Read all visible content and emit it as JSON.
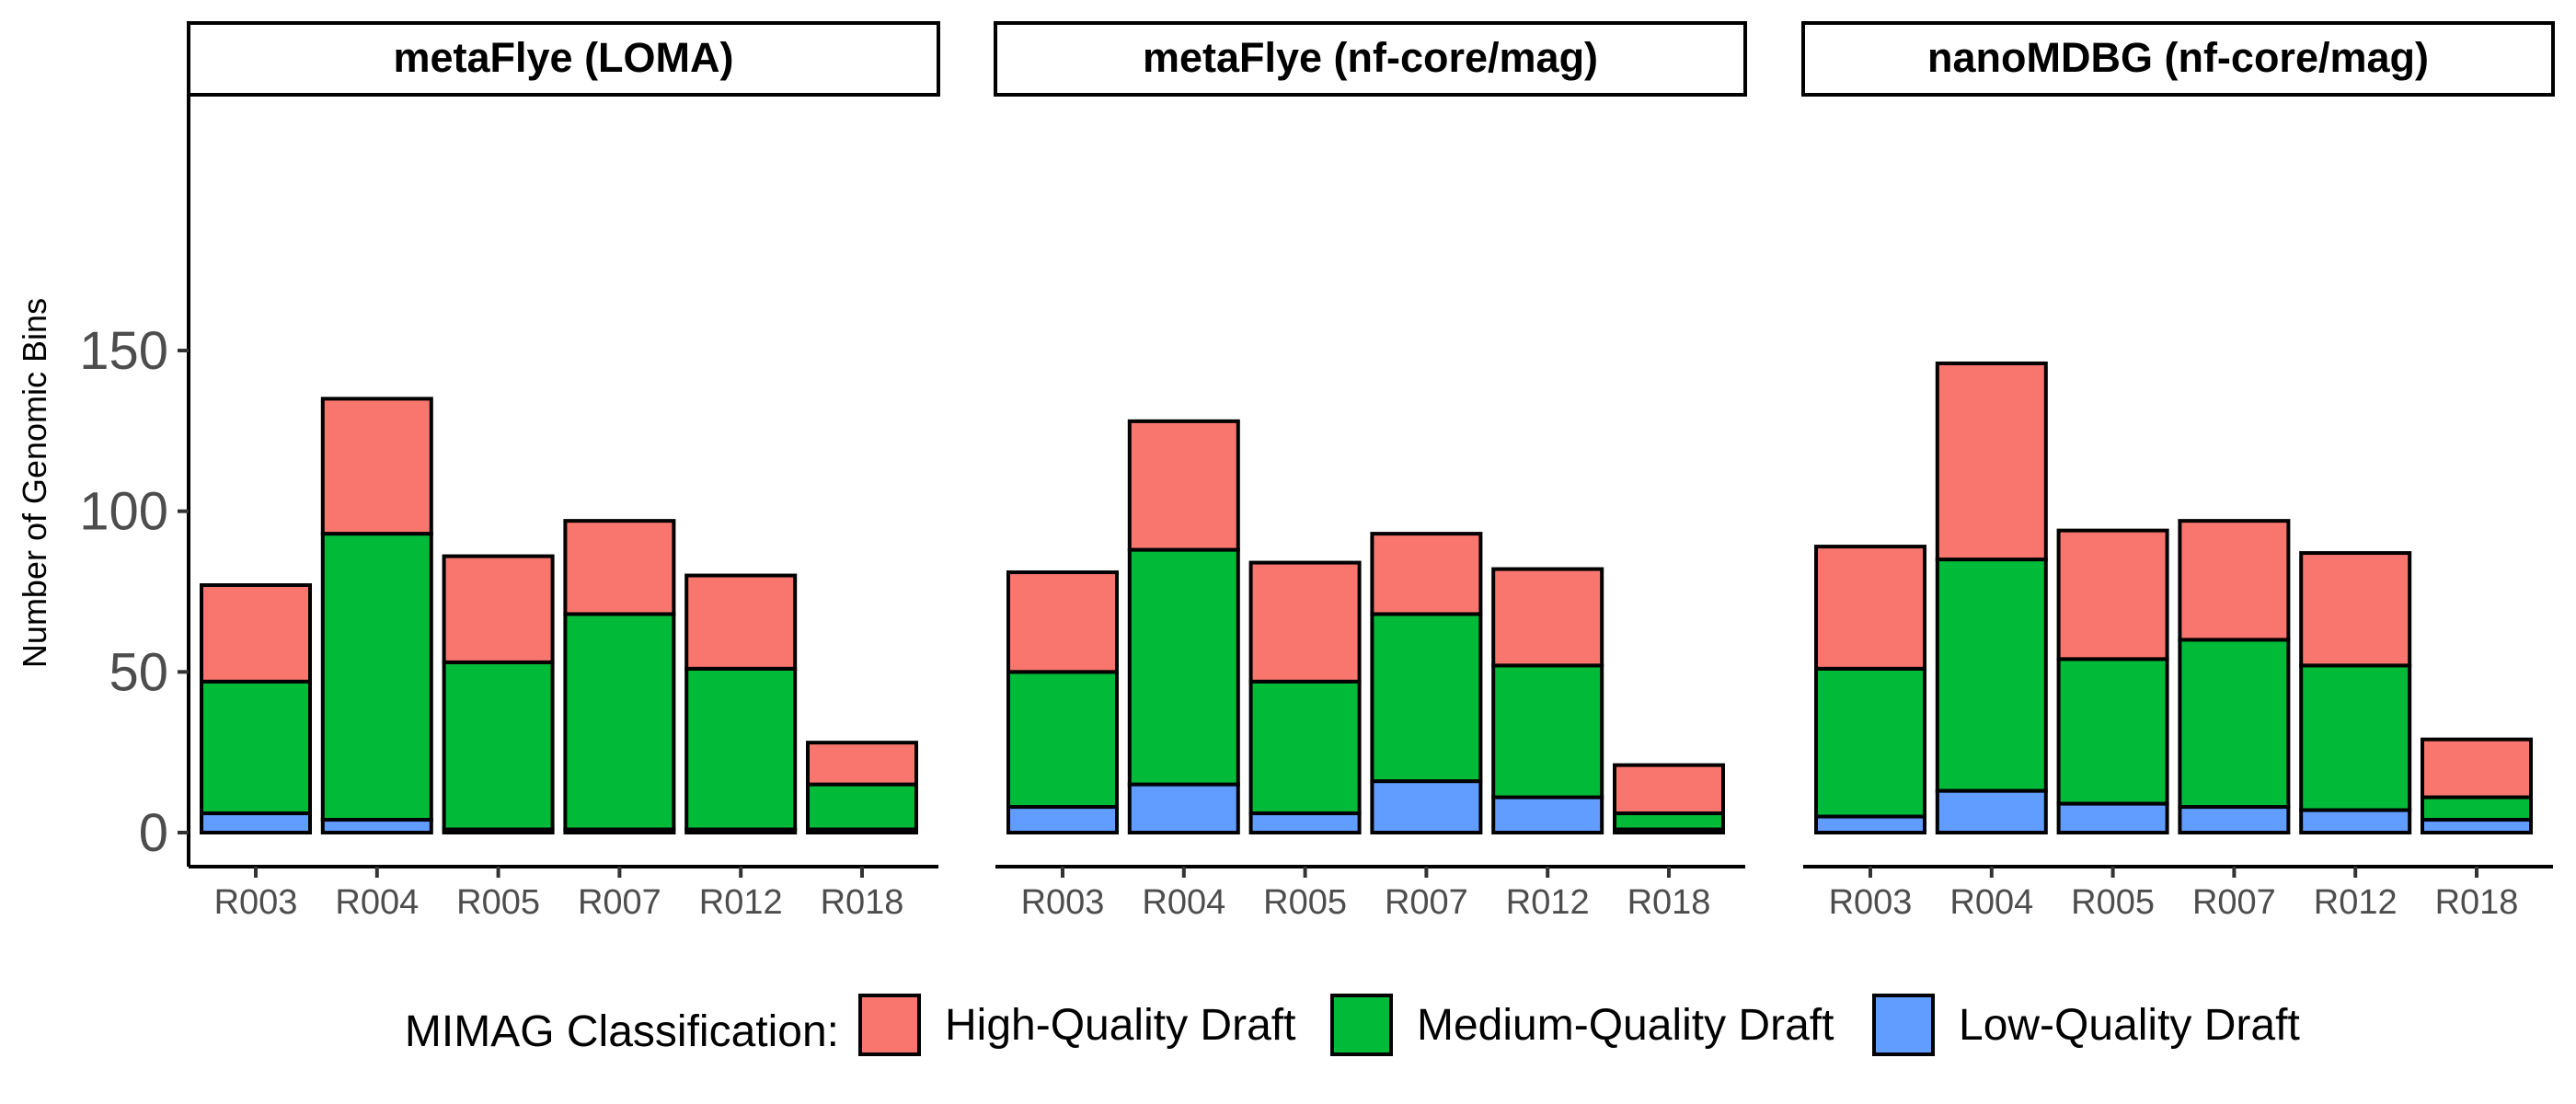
{
  "chart_data": {
    "type": "bar",
    "stacked": true,
    "ylabel": "Number of Genomic Bins",
    "ylim": [
      0,
      150
    ],
    "yticks": [
      0,
      50,
      100,
      150
    ],
    "grid": false,
    "legend": {
      "title": "MIMAG Classification:",
      "placement": "bottom",
      "entries": [
        {
          "name": "High-Quality Draft",
          "color": "#F8766D"
        },
        {
          "name": "Medium-Quality Draft",
          "color": "#00BA38"
        },
        {
          "name": "Low-Quality Draft",
          "color": "#619CFF"
        }
      ]
    },
    "categories": [
      "R003",
      "R004",
      "R005",
      "R007",
      "R012",
      "R018"
    ],
    "panels": [
      {
        "title": "metaFlye (LOMA)",
        "series": [
          {
            "name": "Low-Quality Draft",
            "values": [
              6,
              4,
              1,
              1,
              1,
              1
            ]
          },
          {
            "name": "Medium-Quality Draft",
            "values": [
              41,
              89,
              52,
              67,
              50,
              14
            ]
          },
          {
            "name": "High-Quality Draft",
            "values": [
              30,
              42,
              33,
              29,
              29,
              13
            ]
          }
        ]
      },
      {
        "title": "metaFlye (nf-core/mag)",
        "series": [
          {
            "name": "Low-Quality Draft",
            "values": [
              8,
              15,
              6,
              16,
              11,
              1
            ]
          },
          {
            "name": "Medium-Quality Draft",
            "values": [
              42,
              73,
              41,
              52,
              41,
              5
            ]
          },
          {
            "name": "High-Quality Draft",
            "values": [
              31,
              40,
              37,
              25,
              30,
              15
            ]
          }
        ]
      },
      {
        "title": "nanoMDBG (nf-core/mag)",
        "series": [
          {
            "name": "Low-Quality Draft",
            "values": [
              5,
              13,
              9,
              8,
              7,
              4
            ]
          },
          {
            "name": "Medium-Quality Draft",
            "values": [
              46,
              72,
              45,
              52,
              45,
              7
            ]
          },
          {
            "name": "High-Quality Draft",
            "values": [
              38,
              61,
              40,
              37,
              35,
              18
            ]
          }
        ]
      }
    ]
  }
}
